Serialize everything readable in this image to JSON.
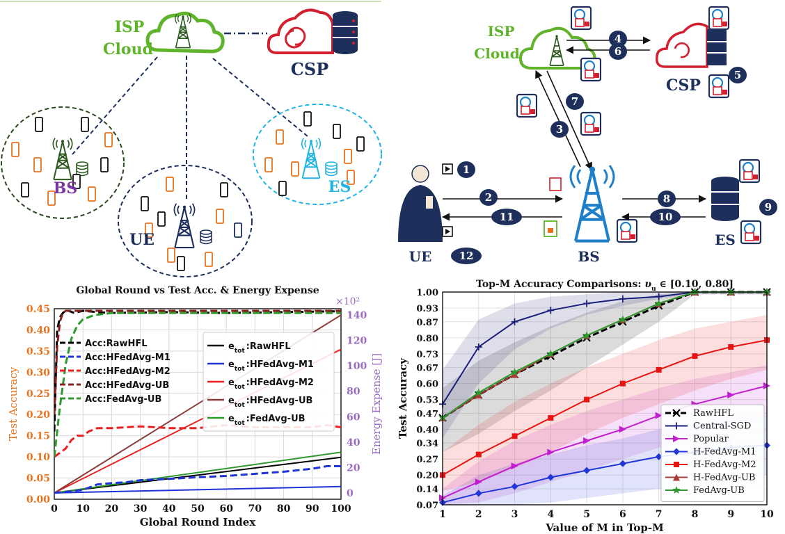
{
  "topology": {
    "isp_line1": "ISP",
    "isp_line2": "Cloud",
    "csp": "CSP",
    "bs": "BS",
    "ue": "UE",
    "es": "ES"
  },
  "workflow": {
    "isp_line1": "ISP",
    "isp_line2": "Cloud",
    "csp": "CSP",
    "ue": "UE",
    "bs": "BS",
    "es": "ES",
    "steps": [
      "1",
      "2",
      "3",
      "4",
      "5",
      "6",
      "7",
      "8",
      "9",
      "10",
      "11",
      "12"
    ]
  },
  "colors": {
    "isp_green": "#5fb42b",
    "csp_red": "#d3202f",
    "navy": "#1d2f5a",
    "bs_purple": "#7a33a3",
    "es_cyan": "#1fb4e6",
    "bs_blue": "#1f7fc8",
    "dark_green": "#2c4a1f"
  },
  "chart_data": [
    {
      "type": "line",
      "title": "Global Round vs Test Acc. & Energy Expense",
      "xlabel": "Global Round Index",
      "ylabel": "Test Accuracy",
      "y2label": "Energy Expense [J]",
      "y2_multiplier_label": "×10²",
      "xlim": [
        0,
        100
      ],
      "ylim": [
        0,
        0.45
      ],
      "y2lim": [
        -5,
        145
      ],
      "xticks": [
        "0",
        "10",
        "20",
        "30",
        "40",
        "50",
        "60",
        "70",
        "80",
        "90",
        "100"
      ],
      "yticks": [
        "0.00",
        "0.05",
        "0.10",
        "0.15",
        "0.20",
        "0.25",
        "0.30",
        "0.35",
        "0.40",
        "0.45"
      ],
      "y2ticks": [
        "0",
        "20",
        "40",
        "60",
        "80",
        "100",
        "120",
        "140"
      ],
      "accuracy_series": [
        {
          "name": "Acc:RawHFL",
          "color": "#000000",
          "x": [
            0,
            1,
            2,
            3,
            4,
            5,
            7,
            10,
            15,
            20,
            40,
            60,
            80,
            100
          ],
          "y": [
            0.16,
            0.4,
            0.43,
            0.44,
            0.445,
            0.445,
            0.44,
            0.445,
            0.442,
            0.44,
            0.442,
            0.44,
            0.442,
            0.444
          ]
        },
        {
          "name": "Acc:HFedAvg-M1",
          "color": "#1f33d6",
          "x": [
            0,
            5,
            10,
            15,
            20,
            25,
            30,
            40,
            50,
            60,
            70,
            80,
            90,
            95,
            100
          ],
          "y": [
            0.015,
            0.018,
            0.022,
            0.035,
            0.038,
            0.04,
            0.045,
            0.048,
            0.052,
            0.055,
            0.06,
            0.065,
            0.072,
            0.078,
            0.078
          ]
        },
        {
          "name": "Acc:HFedAvg-M2",
          "color": "#e82020",
          "x": [
            0,
            2,
            4,
            6,
            8,
            10,
            12,
            15,
            20,
            30,
            40,
            50,
            60,
            70,
            80,
            90,
            95,
            100
          ],
          "y": [
            0.1,
            0.11,
            0.12,
            0.14,
            0.15,
            0.15,
            0.16,
            0.168,
            0.168,
            0.172,
            0.168,
            0.168,
            0.175,
            0.17,
            0.17,
            0.17,
            0.175,
            0.17
          ]
        },
        {
          "name": "Acc:HFedAvg-UB",
          "color": "#8b2121",
          "x": [
            0,
            1,
            2,
            3,
            4,
            5,
            10,
            20,
            40,
            60,
            80,
            100
          ],
          "y": [
            0.2,
            0.36,
            0.42,
            0.44,
            0.445,
            0.445,
            0.445,
            0.445,
            0.445,
            0.445,
            0.445,
            0.445
          ]
        },
        {
          "name": "Acc:FedAvg-UB",
          "color": "#2c9a2c",
          "x": [
            0,
            2,
            4,
            6,
            8,
            10,
            14,
            20,
            40,
            60,
            80,
            100
          ],
          "y": [
            0.1,
            0.22,
            0.32,
            0.38,
            0.41,
            0.425,
            0.435,
            0.44,
            0.44,
            0.44,
            0.44,
            0.44
          ]
        }
      ],
      "energy_series": [
        {
          "name": "e_tot:RawHFL",
          "subscript": "tot",
          "label": "RawHFL",
          "color": "#000000",
          "x": [
            0,
            100
          ],
          "y": [
            0,
            28
          ]
        },
        {
          "name": "e_tot:HFedAvg-M1",
          "subscript": "tot",
          "label": "HFedAvg-M1",
          "color": "#1f33d6",
          "x": [
            0,
            100
          ],
          "y": [
            0,
            5
          ]
        },
        {
          "name": "e_tot:HFedAvg-M2",
          "subscript": "tot",
          "label": "HFedAvg-M2",
          "color": "#e82020",
          "x": [
            0,
            100
          ],
          "y": [
            0,
            113
          ]
        },
        {
          "name": "e_tot:HFedAvg-UB",
          "subscript": "tot",
          "label": "HFedAvg-UB",
          "color": "#8b3a3a",
          "x": [
            0,
            100
          ],
          "y": [
            0,
            140
          ]
        },
        {
          "name": "e_tot:FedAvg-UB",
          "subscript": "tot",
          "label": "FedAvg-UB",
          "color": "#2c9a2c",
          "x": [
            0,
            100
          ],
          "y": [
            0,
            32
          ]
        }
      ],
      "legend_left": "upper-left",
      "legend_right": "upper-middle"
    },
    {
      "type": "line",
      "title_prefix": "Top-M Accuracy Comparisons: ",
      "title_math": "υ",
      "title_sub": "u",
      "title_suffix": " ∈ [0.10, 0.80]",
      "xlabel": "Value of M in Top-M",
      "ylabel": "Test Accuracy",
      "xlim": [
        1,
        10
      ],
      "ylim": [
        0.07,
        1.0
      ],
      "xticks": [
        "1",
        "2",
        "3",
        "4",
        "5",
        "6",
        "7",
        "8",
        "9",
        "10"
      ],
      "yticks": [
        "0.07",
        "0.14",
        "0.20",
        "0.27",
        "0.34",
        "0.40",
        "0.47",
        "0.53",
        "0.60",
        "0.67",
        "0.73",
        "0.80",
        "0.87",
        "0.93",
        "1.00"
      ],
      "x": [
        1,
        2,
        3,
        4,
        5,
        6,
        7,
        8,
        9,
        10
      ],
      "series": [
        {
          "name": "RawHFL",
          "color": "#000000",
          "marker": "x",
          "dash": true,
          "y": [
            0.45,
            0.55,
            0.64,
            0.72,
            0.8,
            0.87,
            0.94,
            1.0,
            1.0,
            1.0
          ],
          "band_lo": [
            0.3,
            0.38,
            0.48,
            0.57,
            0.67,
            0.77,
            0.87,
            0.99,
            0.99,
            0.99
          ],
          "band_hi": [
            0.58,
            0.7,
            0.78,
            0.85,
            0.91,
            0.96,
            0.99,
            1.0,
            1.0,
            1.0
          ]
        },
        {
          "name": "Central-SGD",
          "color": "#1a1f7a",
          "marker": "plus",
          "y": [
            0.51,
            0.76,
            0.87,
            0.92,
            0.95,
            0.97,
            0.98,
            1.0,
            1.0,
            1.0
          ],
          "band_lo": [
            0.36,
            0.6,
            0.75,
            0.84,
            0.9,
            0.94,
            0.97,
            0.99,
            0.99,
            0.99
          ],
          "band_hi": [
            0.66,
            0.88,
            0.95,
            0.98,
            0.99,
            1.0,
            1.0,
            1.0,
            1.0,
            1.0
          ]
        },
        {
          "name": "Popular",
          "color": "#c21ecf",
          "marker": "triangle-right",
          "y": [
            0.1,
            0.17,
            0.24,
            0.3,
            0.35,
            0.4,
            0.46,
            0.51,
            0.55,
            0.59
          ],
          "band_lo": [
            0.07,
            0.08,
            0.12,
            0.17,
            0.22,
            0.27,
            0.32,
            0.37,
            0.42,
            0.46
          ],
          "band_hi": [
            0.14,
            0.26,
            0.35,
            0.42,
            0.48,
            0.53,
            0.58,
            0.62,
            0.65,
            0.68
          ]
        },
        {
          "name": "H-FedAvg-M1",
          "color": "#2037d6",
          "marker": "diamond",
          "y": [
            0.08,
            0.12,
            0.15,
            0.19,
            0.22,
            0.25,
            0.28,
            0.3,
            0.32,
            0.33
          ],
          "band_lo": [
            0.07,
            0.07,
            0.07,
            0.08,
            0.1,
            0.12,
            0.14,
            0.16,
            0.18,
            0.2
          ],
          "band_hi": [
            0.11,
            0.2,
            0.25,
            0.29,
            0.33,
            0.36,
            0.4,
            0.42,
            0.44,
            0.46
          ]
        },
        {
          "name": "H-FedAvg-M2",
          "color": "#e81414",
          "marker": "square",
          "y": [
            0.2,
            0.29,
            0.37,
            0.45,
            0.53,
            0.6,
            0.66,
            0.72,
            0.76,
            0.79
          ],
          "band_lo": [
            0.13,
            0.17,
            0.23,
            0.3,
            0.38,
            0.45,
            0.51,
            0.57,
            0.62,
            0.66
          ],
          "band_hi": [
            0.3,
            0.42,
            0.52,
            0.6,
            0.67,
            0.73,
            0.79,
            0.84,
            0.87,
            0.9
          ]
        },
        {
          "name": "H-FedAvg-UB",
          "color": "#a83a3a",
          "marker": "triangle-up",
          "y": [
            0.45,
            0.55,
            0.64,
            0.73,
            0.81,
            0.88,
            0.95,
            1.0,
            1.0,
            1.0
          ]
        },
        {
          "name": "FedAvg-UB",
          "color": "#2c9a2c",
          "marker": "star",
          "y": [
            0.45,
            0.56,
            0.65,
            0.73,
            0.81,
            0.88,
            0.95,
            1.0,
            1.0,
            1.0
          ]
        }
      ],
      "legend": "lower-right"
    }
  ]
}
